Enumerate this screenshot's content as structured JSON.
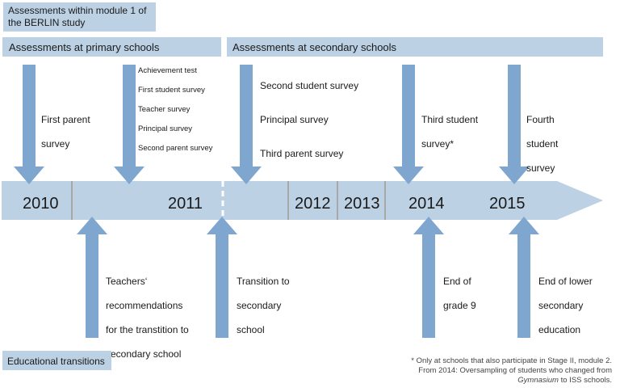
{
  "header": {
    "title": "Assessments within  module 1 of\nthe BERLIN study"
  },
  "sections": {
    "primary": "Assessments at primary schools",
    "secondary": "Assessments at secondary schools",
    "transitions": "Educational transitions"
  },
  "timeline": {
    "years": [
      "2010",
      "2011",
      "2012",
      "2013",
      "2014",
      "2015"
    ]
  },
  "assessments": [
    {
      "lines": [
        "First parent",
        "survey"
      ]
    },
    {
      "lines": [
        "Achievement test",
        "First student survey",
        "Teacher survey",
        "Principal survey",
        "Second parent survey"
      ]
    },
    {
      "lines": [
        "Second student survey",
        "Principal survey",
        "Third parent survey"
      ]
    },
    {
      "lines": [
        "Third student",
        "survey*"
      ]
    },
    {
      "lines": [
        "Fourth",
        "student",
        "survey"
      ]
    }
  ],
  "transitions": [
    {
      "lines": [
        "Teachers‘",
        "recommendations",
        "for the transtition to",
        "secondary school"
      ]
    },
    {
      "lines": [
        "Transition to",
        "secondary",
        "school"
      ]
    },
    {
      "lines": [
        "End of",
        "grade 9"
      ]
    },
    {
      "lines": [
        "End of lower",
        "secondary",
        "education"
      ]
    }
  ],
  "footnote": {
    "line1": "* Only at schools that also participate in Stage II, module 2.",
    "line2": "From 2014: Oversampling of students who changed from",
    "line3_italic": "Gymnasium",
    "line3_rest": " to ISS schools."
  },
  "colors": {
    "arrow": "#7fa6cf",
    "band": "#bcd1e4",
    "divider": "#a8a8a8"
  }
}
